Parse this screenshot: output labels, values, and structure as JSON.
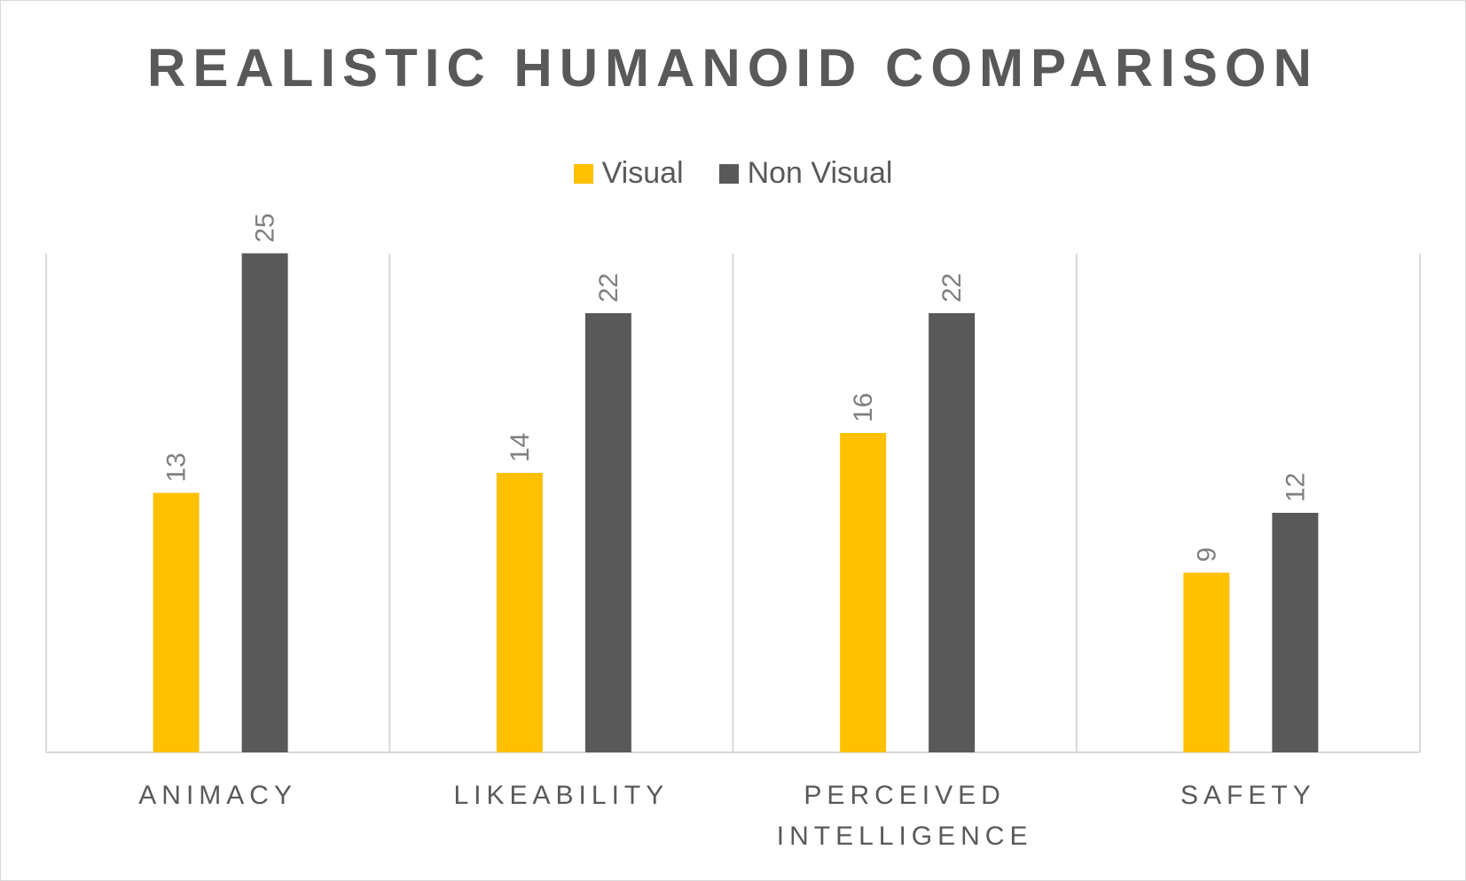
{
  "chart_data": {
    "type": "bar",
    "title": "REALISTIC HUMANOID COMPARISON",
    "categories": [
      [
        "ANIMACY"
      ],
      [
        "LIKEABILITY"
      ],
      [
        "PERCEIVED",
        "INTELLIGENCE"
      ],
      [
        "SAFETY"
      ]
    ],
    "series": [
      {
        "name": "Visual",
        "color": "#ffc000",
        "values": [
          13,
          14,
          16,
          9
        ]
      },
      {
        "name": "Non Visual",
        "color": "#595959",
        "values": [
          25,
          22,
          22,
          12
        ]
      }
    ],
    "ylim": [
      0,
      30
    ],
    "grid": "vertical category separators",
    "legend": "top-center"
  }
}
